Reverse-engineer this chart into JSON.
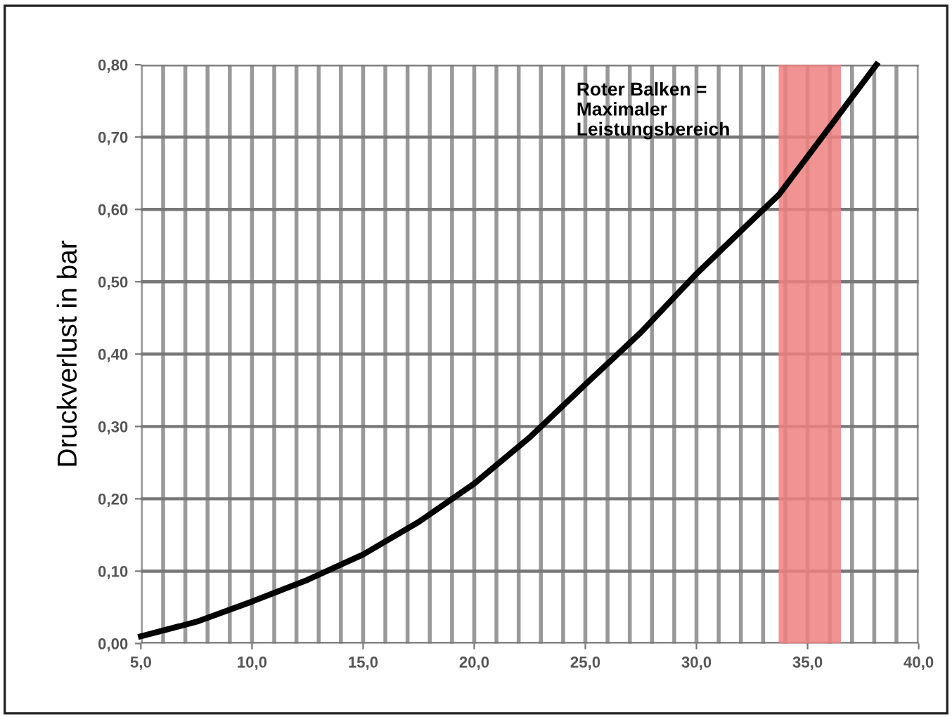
{
  "chart_data": {
    "type": "line",
    "ylabel": "Druckverlust in bar",
    "x": [
      5,
      7.5,
      10,
      12.5,
      15,
      17.5,
      20,
      22.5,
      25,
      27.5,
      30,
      32.5,
      33.7,
      35,
      37,
      38.1
    ],
    "series": [
      {
        "color": "#000000",
        "values": [
          0.01,
          0.03,
          0.058,
          0.088,
          0.123,
          0.168,
          0.221,
          0.285,
          0.358,
          0.43,
          0.511,
          0.585,
          0.62,
          0.673,
          0.755,
          0.8
        ]
      }
    ],
    "xlim": [
      5,
      40
    ],
    "ylim": [
      0,
      0.8
    ],
    "xticks": [
      {
        "value": 5,
        "label": "5,0"
      },
      {
        "value": 10,
        "label": "10,0"
      },
      {
        "value": 15,
        "label": "15,0"
      },
      {
        "value": 20,
        "label": "20,0"
      },
      {
        "value": 25,
        "label": "25,0"
      },
      {
        "value": 30,
        "label": "30,0"
      },
      {
        "value": 35,
        "label": "35,0"
      },
      {
        "value": 40,
        "label": "40,0"
      }
    ],
    "yticks": [
      {
        "value": 0,
        "label": "0,00"
      },
      {
        "value": 0.1,
        "label": "0,10"
      },
      {
        "value": 0.2,
        "label": "0,20"
      },
      {
        "value": 0.3,
        "label": "0,30"
      },
      {
        "value": 0.4,
        "label": "0,40"
      },
      {
        "value": 0.5,
        "label": "0,50"
      },
      {
        "value": 0.6,
        "label": "0,60"
      },
      {
        "value": 0.7,
        "label": "0,70"
      },
      {
        "value": 0.8,
        "label": "0,80"
      }
    ],
    "bands": [
      {
        "axis": "x",
        "from": 33.7,
        "to": 36.5,
        "color": "#f08080"
      }
    ],
    "annotations": [
      "Roter Balken =\nMaximaler\nLeistungsbereich"
    ],
    "grid": true,
    "marker": "none",
    "line_style": "solid"
  }
}
